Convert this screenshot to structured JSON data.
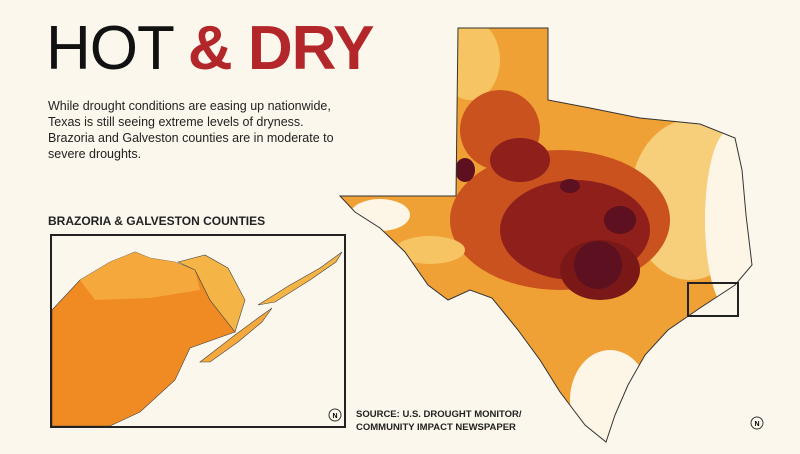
{
  "header": {
    "title_part1": "HOT",
    "title_part2": "& DRY"
  },
  "description": "While drought conditions are easing up nationwide, Texas is still seeing extreme levels of dryness. Brazoria and Galveston counties are in moderate to severe droughts.",
  "inset": {
    "heading": "BRAZORIA & GALVESTON COUNTIES",
    "north_label": "N"
  },
  "source": {
    "line1": "SOURCE: U.S. DROUGHT MONITOR/",
    "line2": "COMMUNITY IMPACT NEWSPAPER"
  },
  "map": {
    "north_label": "N"
  }
}
